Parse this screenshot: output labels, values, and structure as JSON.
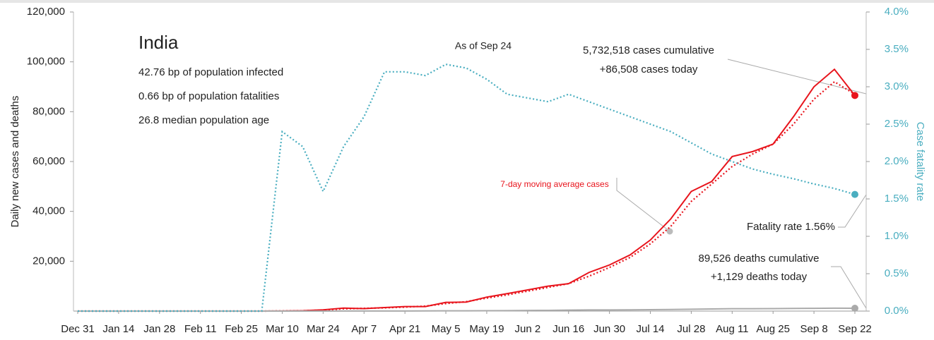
{
  "chart_data": {
    "type": "line",
    "title": "India",
    "subtitle": [
      "42.76 bp of population infected",
      "0.66 bp of population fatalities",
      "26.8 median population age"
    ],
    "annotations": {
      "as_of": "As of Sep 24",
      "cases": [
        "5,732,518 cases cumulative",
        "+86,508 cases today"
      ],
      "fatality": "Fatality rate 1.56%",
      "deaths": [
        "89,526 deaths cumulative",
        "+1,129 deaths today"
      ]
    },
    "ylabel": "Daily new cases and deaths",
    "y2label": "Case fatality rate",
    "categories": [
      "Dec 31",
      null,
      "Jan 14",
      null,
      "Jan 28",
      null,
      "Feb 11",
      null,
      "Feb 25",
      null,
      "Mar 10",
      null,
      "Mar 24",
      null,
      "Apr 7",
      null,
      "Apr 21",
      null,
      "May 5",
      null,
      "May 19",
      null,
      "Jun 2",
      null,
      "Jun 16",
      null,
      "Jun 30",
      null,
      "Jul 14",
      null,
      "Jul 28",
      null,
      "Aug 11",
      null,
      "Aug 25",
      null,
      "Sep 8",
      null,
      "Sep 22"
    ],
    "ylim": [
      0,
      120000
    ],
    "yticks": [
      {
        "value": 20000,
        "label": "20,000"
      },
      {
        "value": 40000,
        "label": "40,000"
      },
      {
        "value": 60000,
        "label": "60,000"
      },
      {
        "value": 80000,
        "label": "80,000"
      },
      {
        "value": 100000,
        "label": "100,000"
      },
      {
        "value": 120000,
        "label": "120,000"
      }
    ],
    "y2lim": [
      0,
      4
    ],
    "y2ticks": [
      {
        "value": 0,
        "label": "0.0%"
      },
      {
        "value": 0.5,
        "label": "0.5%"
      },
      {
        "value": 1,
        "label": "1.0%"
      },
      {
        "value": 1.5,
        "label": "1.5%"
      },
      {
        "value": 2,
        "label": "2.0%"
      },
      {
        "value": 2.5,
        "label": "2.5%"
      },
      {
        "value": 3,
        "label": "3.0%"
      },
      {
        "value": 3.5,
        "label": "3.5%"
      },
      {
        "value": 4,
        "label": "4.0%"
      }
    ],
    "series": [
      {
        "color": "#e8141c",
        "style": "solid",
        "values": [
          0,
          0,
          0,
          0,
          0,
          0,
          0,
          0,
          0,
          0,
          50,
          150,
          500,
          1200,
          1000,
          1400,
          1800,
          1800,
          3500,
          3600,
          5600,
          7000,
          8500,
          10000,
          11000,
          15500,
          18500,
          22500,
          28500,
          37000,
          48000,
          52000,
          62000,
          64000,
          67000,
          78000,
          90000,
          97000,
          86508
        ]
      },
      {
        "name": "7-day moving average cases",
        "color": "#e8141c",
        "style": "dotted",
        "values": [
          0,
          0,
          0,
          0,
          0,
          0,
          0,
          0,
          0,
          0,
          40,
          120,
          400,
          900,
          1100,
          1300,
          1600,
          2000,
          3000,
          3800,
          5200,
          6500,
          8000,
          9500,
          11000,
          14000,
          17500,
          21500,
          27000,
          34000,
          44000,
          51000,
          58000,
          63000,
          67000,
          75000,
          85000,
          92000,
          87000
        ]
      },
      {
        "color": "#aaaaaa",
        "style": "solid",
        "values": [
          0,
          0,
          0,
          0,
          0,
          0,
          0,
          0,
          0,
          0,
          0,
          5,
          15,
          40,
          40,
          40,
          50,
          60,
          100,
          120,
          140,
          170,
          250,
          300,
          400,
          450,
          450,
          500,
          550,
          650,
          750,
          850,
          950,
          950,
          1000,
          1050,
          1100,
          1150,
          1129
        ]
      },
      {
        "color": "#4aaec0",
        "style": "dotted",
        "axis": "y2",
        "values": [
          0,
          0,
          0,
          0,
          0,
          0,
          0,
          0,
          0,
          0,
          2.4,
          2.2,
          1.6,
          2.2,
          2.6,
          3.2,
          3.2,
          3.15,
          3.3,
          3.25,
          3.1,
          2.9,
          2.85,
          2.8,
          2.9,
          2.8,
          2.7,
          2.6,
          2.5,
          2.4,
          2.25,
          2.1,
          2.0,
          1.9,
          1.83,
          1.77,
          1.7,
          1.64,
          1.56
        ]
      }
    ]
  }
}
